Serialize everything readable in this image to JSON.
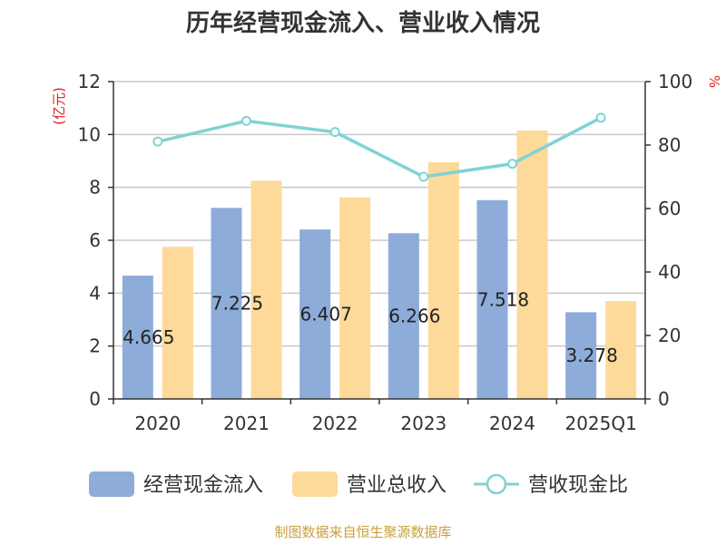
{
  "chart_data": {
    "type": "bar",
    "title": "历年经营现金流入、营业收入情况",
    "categories": [
      "2020",
      "2021",
      "2022",
      "2023",
      "2024",
      "2025Q1"
    ],
    "left_axis": {
      "unit": "(亿元)",
      "ylim": [
        0,
        12
      ],
      "ticks": [
        "0",
        "2",
        "4",
        "6",
        "8",
        "10",
        "12"
      ]
    },
    "right_axis": {
      "unit": "%",
      "ylim": [
        0,
        100
      ],
      "ticks": [
        "0",
        "20",
        "40",
        "60",
        "80",
        "100"
      ]
    },
    "series": [
      {
        "name": "经营现金流入",
        "type": "bar",
        "axis": "left",
        "color": "#8eacd9",
        "values": [
          4.665,
          7.225,
          6.407,
          6.266,
          7.518,
          3.278
        ],
        "labels": [
          "4.665",
          "7.225",
          "6.407",
          "6.266",
          "7.518",
          "3.278"
        ]
      },
      {
        "name": "营业总收入",
        "type": "bar",
        "axis": "left",
        "color": "#fdd99a",
        "values": [
          5.75,
          8.25,
          7.62,
          8.95,
          10.15,
          3.7
        ]
      },
      {
        "name": "营收现金比",
        "type": "line",
        "axis": "right",
        "color": "#7fd3d3",
        "values": [
          81.1,
          87.6,
          84.1,
          70.0,
          74.1,
          88.6
        ]
      }
    ],
    "grid": true,
    "legend_position": "bottom"
  },
  "source": "制图数据来自恒生聚源数据库"
}
